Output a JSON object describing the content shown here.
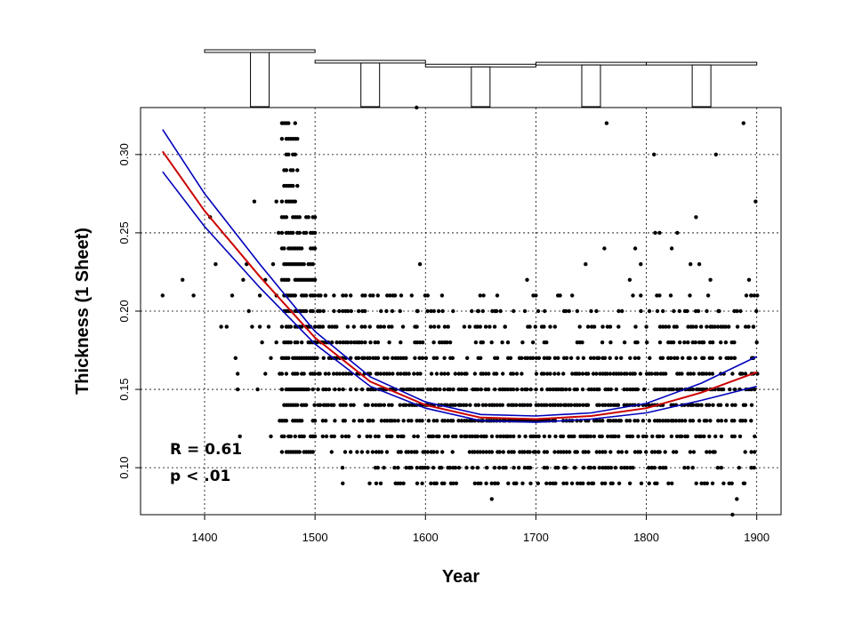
{
  "chart_data": {
    "type": "scatter",
    "title": "",
    "xlabel": "Year",
    "ylabel": "Thickness (1 Sheet)",
    "xlim": [
      1342,
      1922
    ],
    "ylim": [
      0.07,
      0.33
    ],
    "x_ticks": [
      1400,
      1500,
      1600,
      1700,
      1800,
      1900
    ],
    "y_ticks": [
      0.1,
      0.15,
      0.2,
      0.25,
      0.3
    ],
    "x_tick_labels": [
      "1400",
      "1500",
      "1600",
      "1700",
      "1800",
      "1900"
    ],
    "y_tick_labels": [
      "0.10",
      "0.15",
      "0.20",
      "0.25",
      "0.30"
    ],
    "grid": true,
    "annotations": [
      "R = 0.61",
      "p < .01"
    ],
    "colors": {
      "points": "#000000",
      "fit": "#cc0000",
      "band": "#0000bb",
      "grid": "#000000"
    },
    "fit_curve": {
      "color": "#cc0000",
      "x": [
        1362,
        1400,
        1450,
        1500,
        1550,
        1600,
        1650,
        1700,
        1750,
        1800,
        1850,
        1900
      ],
      "y": [
        0.302,
        0.264,
        0.222,
        0.183,
        0.155,
        0.14,
        0.132,
        0.131,
        0.133,
        0.138,
        0.148,
        0.161
      ]
    },
    "confidence_band": {
      "color": "#0000bb",
      "x": [
        1362,
        1400,
        1450,
        1500,
        1550,
        1600,
        1650,
        1700,
        1750,
        1800,
        1850,
        1900
      ],
      "upper": [
        0.316,
        0.275,
        0.23,
        0.187,
        0.158,
        0.142,
        0.134,
        0.133,
        0.135,
        0.141,
        0.154,
        0.171
      ],
      "lower": [
        0.289,
        0.254,
        0.215,
        0.179,
        0.152,
        0.138,
        0.13,
        0.129,
        0.131,
        0.135,
        0.143,
        0.152
      ]
    },
    "marginal_histogram": {
      "bins": [
        {
          "x0": 1400,
          "x1": 1500,
          "count": 590
        },
        {
          "x0": 1500,
          "x1": 1600,
          "count": 480
        },
        {
          "x0": 1600,
          "x1": 1700,
          "count": 440
        },
        {
          "x0": 1700,
          "x1": 1800,
          "count": 460
        },
        {
          "x0": 1800,
          "x1": 1900,
          "count": 460
        }
      ],
      "box_width": 15
    },
    "points": [
      [
        1362,
        0.21
      ],
      [
        1380,
        0.22
      ],
      [
        1390,
        0.21
      ],
      [
        1405,
        0.26
      ],
      [
        1410,
        0.23
      ],
      [
        1415,
        0.19
      ],
      [
        1420,
        0.19
      ],
      [
        1425,
        0.21
      ],
      [
        1428,
        0.17
      ],
      [
        1430,
        0.16
      ],
      [
        1430,
        0.15
      ],
      [
        1432,
        0.12
      ],
      [
        1435,
        0.22
      ],
      [
        1438,
        0.23
      ],
      [
        1440,
        0.2
      ],
      [
        1443,
        0.19
      ],
      [
        1445,
        0.27
      ],
      [
        1448,
        0.15
      ],
      [
        1450,
        0.21
      ],
      [
        1450,
        0.19
      ],
      [
        1452,
        0.18
      ],
      [
        1455,
        0.22
      ],
      [
        1455,
        0.16
      ],
      [
        1458,
        0.19
      ],
      [
        1460,
        0.12
      ],
      [
        1460,
        0.17
      ],
      [
        1462,
        0.23
      ],
      [
        1465,
        0.27
      ],
      [
        1465,
        0.21
      ],
      [
        1465,
        0.18
      ],
      [
        1467,
        0.25
      ],
      [
        1468,
        0.13
      ],
      [
        1468,
        0.16
      ],
      [
        1592,
        0.33
      ],
      [
        1595,
        0.23
      ],
      [
        1593,
        0.2
      ],
      [
        1597,
        0.09
      ],
      [
        1590,
        0.11
      ],
      [
        1610,
        0.09
      ],
      [
        1625,
        0.2
      ],
      [
        1640,
        0.19
      ],
      [
        1648,
        0.2
      ],
      [
        1652,
        0.2
      ],
      [
        1660,
        0.08
      ],
      [
        1663,
        0.09
      ],
      [
        1665,
        0.21
      ],
      [
        1668,
        0.2
      ],
      [
        1672,
        0.19
      ],
      [
        1680,
        0.1
      ],
      [
        1682,
        0.09
      ],
      [
        1688,
        0.09
      ],
      [
        1692,
        0.22
      ],
      [
        1700,
        0.21
      ],
      [
        1720,
        0.21
      ],
      [
        1730,
        0.2
      ],
      [
        1735,
        0.1
      ],
      [
        1745,
        0.23
      ],
      [
        1750,
        0.2
      ],
      [
        1762,
        0.24
      ],
      [
        1764,
        0.32
      ],
      [
        1775,
        0.2
      ],
      [
        1778,
        0.2
      ],
      [
        1785,
        0.22
      ],
      [
        1790,
        0.24
      ],
      [
        1795,
        0.23
      ],
      [
        1795,
        0.21
      ],
      [
        1805,
        0.1
      ],
      [
        1807,
        0.3
      ],
      [
        1808,
        0.25
      ],
      [
        1810,
        0.2
      ],
      [
        1812,
        0.25
      ],
      [
        1815,
        0.2
      ],
      [
        1820,
        0.09
      ],
      [
        1823,
        0.24
      ],
      [
        1828,
        0.25
      ],
      [
        1830,
        0.2
      ],
      [
        1835,
        0.2
      ],
      [
        1840,
        0.23
      ],
      [
        1845,
        0.26
      ],
      [
        1848,
        0.23
      ],
      [
        1850,
        0.09
      ],
      [
        1852,
        0.18
      ],
      [
        1856,
        0.21
      ],
      [
        1858,
        0.22
      ],
      [
        1860,
        0.09
      ],
      [
        1863,
        0.3
      ],
      [
        1866,
        0.2
      ],
      [
        1870,
        0.09
      ],
      [
        1875,
        0.09
      ],
      [
        1878,
        0.07
      ],
      [
        1882,
        0.08
      ],
      [
        1884,
        0.1
      ],
      [
        1888,
        0.32
      ],
      [
        1889,
        0.09
      ],
      [
        1893,
        0.22
      ],
      [
        1895,
        0.21
      ],
      [
        1897,
        0.19
      ],
      [
        1899,
        0.27
      ],
      [
        1898,
        0.15
      ],
      [
        1896,
        0.17
      ],
      [
        1885,
        0.16
      ],
      [
        1880,
        0.17
      ],
      [
        1872,
        0.19
      ]
    ]
  }
}
